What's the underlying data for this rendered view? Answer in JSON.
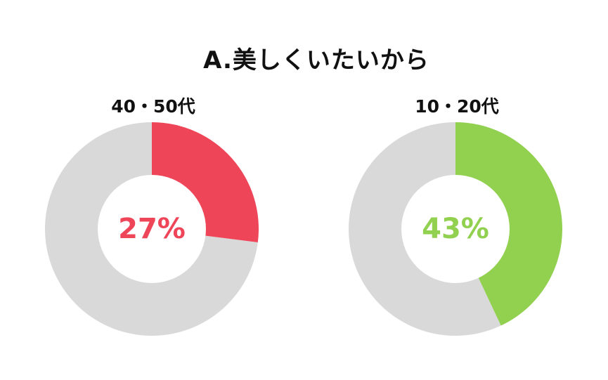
{
  "title": "A.美しくいたいから",
  "chart_data": [
    {
      "type": "pie",
      "title": "40・50代",
      "value": 27,
      "value_label": "27%",
      "color": "#ef4559",
      "remainder_color": "#d9d9d9"
    },
    {
      "type": "pie",
      "title": "10・20代",
      "value": 43,
      "value_label": "43%",
      "color": "#92d050",
      "remainder_color": "#d9d9d9"
    }
  ]
}
